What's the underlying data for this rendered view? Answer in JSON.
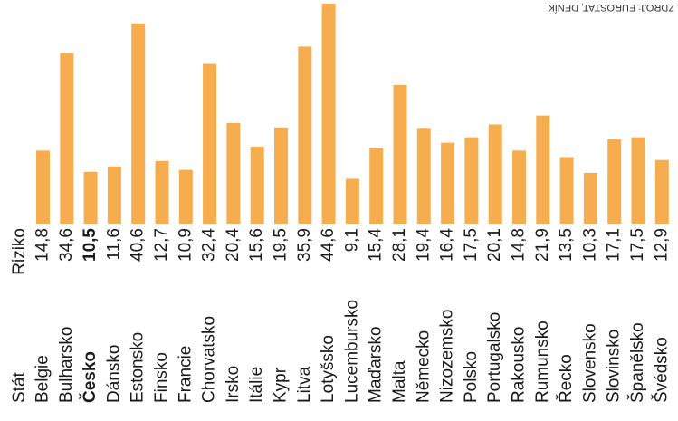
{
  "chart_data": {
    "type": "bar",
    "category_label": "Stát",
    "value_label": "Riziko",
    "source": "ZDROJ: EUROSTAT, DENÍK",
    "categories": [
      "Belgie",
      "Bulharsko",
      "Česko",
      "Dánsko",
      "Estonsko",
      "Finsko",
      "Francie",
      "Chorvatsko",
      "Irsko",
      "Itálie",
      "Kypr",
      "Litva",
      "Lotyšsko",
      "Lucembursko",
      "Maďarsko",
      "Malta",
      "Německo",
      "Nizozemsko",
      "Polsko",
      "Portugalsko",
      "Rakousko",
      "Rumunsko",
      "Řecko",
      "Slovensko",
      "Slovinsko",
      "Španělsko",
      "Švédsko"
    ],
    "values": [
      14.8,
      34.6,
      10.5,
      11.6,
      40.6,
      12.7,
      10.9,
      32.4,
      20.4,
      15.6,
      19.5,
      35.9,
      44.6,
      9.1,
      15.4,
      28.1,
      19.4,
      16.4,
      17.5,
      20.1,
      14.8,
      21.9,
      13.5,
      10.3,
      17.1,
      17.5,
      12.9
    ],
    "value_labels": [
      "14,8",
      "34,6",
      "10,5",
      "11,6",
      "40,6",
      "12,7",
      "10,9",
      "32,4",
      "20,4",
      "15,6",
      "19,5",
      "35,9",
      "44,6",
      "9,1",
      "15,4",
      "28,1",
      "19,4",
      "16,4",
      "17,5",
      "20,1",
      "14,8",
      "21,9",
      "13,5",
      "10,3",
      "17,1",
      "17,5",
      "12,9"
    ],
    "highlight": "Česko",
    "color": "#f5ad4f"
  }
}
